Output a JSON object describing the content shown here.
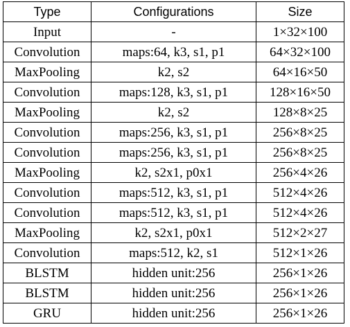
{
  "table": {
    "headers": [
      "Type",
      "Configurations",
      "Size"
    ],
    "rows": [
      [
        "Input",
        "-",
        "1×32×100"
      ],
      [
        "Convolution",
        "maps:64, k3, s1, p1",
        "64×32×100"
      ],
      [
        "MaxPooling",
        "k2, s2",
        "64×16×50"
      ],
      [
        "Convolution",
        "maps:128, k3, s1, p1",
        "128×16×50"
      ],
      [
        "MaxPooling",
        "k2, s2",
        "128×8×25"
      ],
      [
        "Convolution",
        "maps:256, k3, s1, p1",
        "256×8×25"
      ],
      [
        "Convolution",
        "maps:256, k3, s1, p1",
        "256×8×25"
      ],
      [
        "MaxPooling",
        "k2, s2x1, p0x1",
        "256×4×26"
      ],
      [
        "Convolution",
        "maps:512, k3, s1, p1",
        "512×4×26"
      ],
      [
        "Convolution",
        "maps:512, k3, s1, p1",
        "512×4×26"
      ],
      [
        "MaxPooling",
        "k2, s2x1, p0x1",
        "512×2×27"
      ],
      [
        "Convolution",
        "maps:512, k2, s1",
        "512×1×26"
      ],
      [
        "BLSTM",
        "hidden unit:256",
        "256×1×26"
      ],
      [
        "BLSTM",
        "hidden unit:256",
        "256×1×26"
      ],
      [
        "GRU",
        "hidden unit:256",
        "256×1×26"
      ]
    ]
  }
}
